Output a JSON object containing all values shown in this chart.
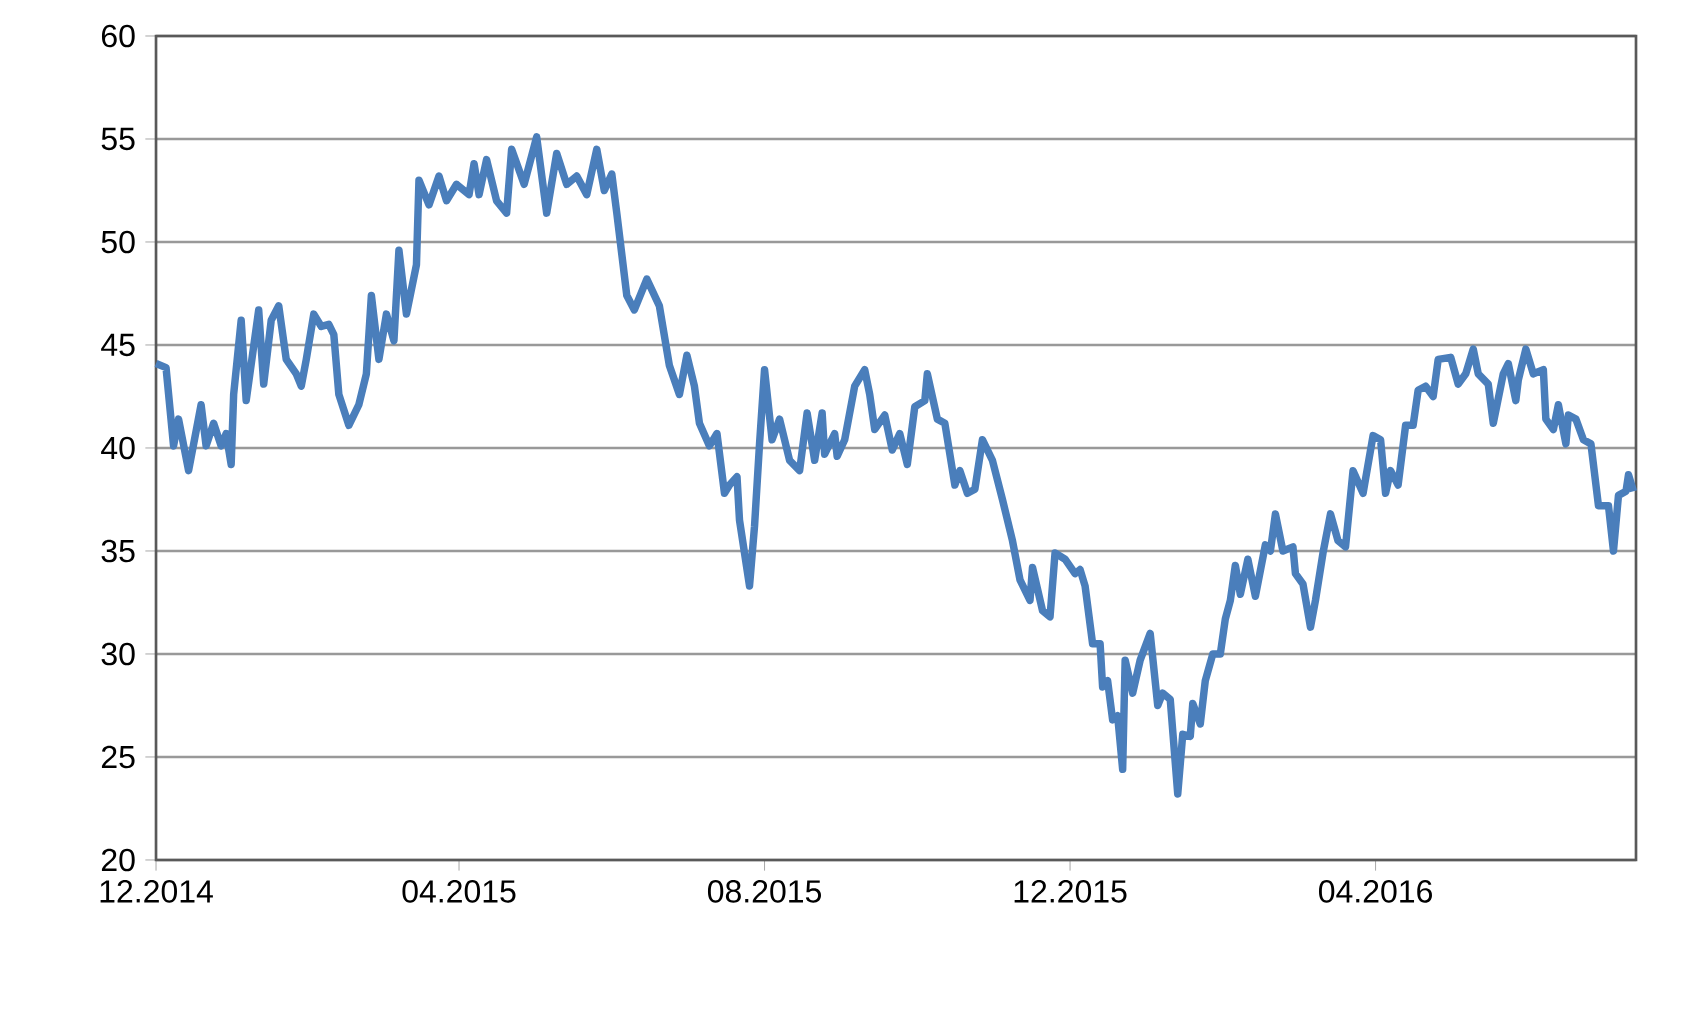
{
  "chart_data": {
    "type": "line",
    "color": "#4a7ebb",
    "grid": "y",
    "xlim": [
      "2014-12-01",
      "2016-07-14"
    ],
    "xticks": [
      {
        "value": "2014-12-01",
        "label": "12.2014"
      },
      {
        "value": "2015-04-01",
        "label": "04.2015"
      },
      {
        "value": "2015-08-01",
        "label": "08.2015"
      },
      {
        "value": "2015-12-01",
        "label": "12.2015"
      },
      {
        "value": "2016-04-01",
        "label": "04.2016"
      }
    ],
    "ylim": [
      20,
      60
    ],
    "yticks": [
      20,
      25,
      30,
      35,
      40,
      45,
      50,
      55,
      60
    ],
    "x": [
      "2014-12-01",
      "2014-12-05",
      "2014-12-08",
      "2014-12-10",
      "2014-12-14",
      "2014-12-19",
      "2014-12-21",
      "2014-12-24",
      "2014-12-27",
      "2014-12-29",
      "2014-12-31",
      "2015-01-01",
      "2015-01-04",
      "2015-01-06",
      "2015-01-11",
      "2015-01-13",
      "2015-01-16",
      "2015-01-19",
      "2015-01-22",
      "2015-01-26",
      "2015-01-28",
      "2015-01-30",
      "2015-02-02",
      "2015-02-05",
      "2015-02-08",
      "2015-02-10",
      "2015-02-12",
      "2015-02-16",
      "2015-02-20",
      "2015-02-23",
      "2015-02-25",
      "2015-02-28",
      "2015-03-03",
      "2015-03-06",
      "2015-03-08",
      "2015-03-11",
      "2015-03-15",
      "2015-03-16",
      "2015-03-20",
      "2015-03-24",
      "2015-03-27",
      "2015-03-31",
      "2015-04-05",
      "2015-04-07",
      "2015-04-09",
      "2015-04-12",
      "2015-04-16",
      "2015-04-20",
      "2015-04-22",
      "2015-04-27",
      "2015-05-02",
      "2015-05-06",
      "2015-05-10",
      "2015-05-14",
      "2015-05-18",
      "2015-05-22",
      "2015-05-26",
      "2015-05-29",
      "2015-06-01",
      "2015-06-03",
      "2015-06-07",
      "2015-06-10",
      "2015-06-15",
      "2015-06-20",
      "2015-06-24",
      "2015-06-28",
      "2015-07-01",
      "2015-07-04",
      "2015-07-06",
      "2015-07-10",
      "2015-07-13",
      "2015-07-16",
      "2015-07-18",
      "2015-07-21",
      "2015-07-22",
      "2015-07-26",
      "2015-07-28",
      "2015-07-30",
      "2015-08-01",
      "2015-08-04",
      "2015-08-07",
      "2015-08-11",
      "2015-08-15",
      "2015-08-18",
      "2015-08-21",
      "2015-08-24",
      "2015-08-25",
      "2015-08-29",
      "2015-08-30",
      "2015-09-02",
      "2015-09-06",
      "2015-09-10",
      "2015-09-12",
      "2015-09-14",
      "2015-09-18",
      "2015-09-21",
      "2015-09-24",
      "2015-09-27",
      "2015-09-30",
      "2015-10-04",
      "2015-10-05",
      "2015-10-09",
      "2015-10-12",
      "2015-10-16",
      "2015-10-18",
      "2015-10-21",
      "2015-10-24",
      "2015-10-27",
      "2015-10-31",
      "2015-11-04",
      "2015-11-08",
      "2015-11-11",
      "2015-11-15",
      "2015-11-16",
      "2015-11-20",
      "2015-11-23",
      "2015-11-25",
      "2015-11-29",
      "2015-12-03",
      "2015-12-05",
      "2015-12-07",
      "2015-12-10",
      "2015-12-13",
      "2015-12-14",
      "2015-12-16",
      "2015-12-18",
      "2015-12-20",
      "2015-12-22",
      "2015-12-23",
      "2015-12-26",
      "2015-12-29",
      "2016-01-02",
      "2016-01-05",
      "2016-01-07",
      "2016-01-10",
      "2016-01-13",
      "2016-01-15",
      "2016-01-18",
      "2016-01-19",
      "2016-01-22",
      "2016-01-24",
      "2016-01-27",
      "2016-01-30",
      "2016-02-01",
      "2016-02-03",
      "2016-02-05",
      "2016-02-07",
      "2016-02-10",
      "2016-02-13",
      "2016-02-17",
      "2016-02-19",
      "2016-02-21",
      "2016-02-24",
      "2016-02-28",
      "2016-02-29",
      "2016-03-03",
      "2016-03-06",
      "2016-03-08",
      "2016-03-11",
      "2016-03-14",
      "2016-03-17",
      "2016-03-20",
      "2016-03-23",
      "2016-03-27",
      "2016-03-31",
      "2016-04-03",
      "2016-04-05",
      "2016-04-07",
      "2016-04-10",
      "2016-04-13",
      "2016-04-16",
      "2016-04-18",
      "2016-04-21",
      "2016-04-24",
      "2016-04-26",
      "2016-05-01",
      "2016-05-04",
      "2016-05-07",
      "2016-05-10",
      "2016-05-12",
      "2016-05-16",
      "2016-05-18",
      "2016-05-22",
      "2016-05-24",
      "2016-05-27",
      "2016-05-28",
      "2016-05-31",
      "2016-06-03",
      "2016-06-07",
      "2016-06-08",
      "2016-06-11",
      "2016-06-13",
      "2016-06-16",
      "2016-06-17",
      "2016-06-20",
      "2016-06-23",
      "2016-06-26",
      "2016-06-29",
      "2016-07-03",
      "2016-07-05",
      "2016-07-07",
      "2016-07-10",
      "2016-07-11",
      "2016-07-13"
    ],
    "values": [
      44.1,
      43.9,
      40.1,
      41.4,
      38.9,
      42.1,
      40.1,
      41.2,
      40.1,
      40.7,
      39.2,
      42.6,
      46.2,
      42.3,
      46.7,
      43.1,
      46.2,
      46.9,
      44.3,
      43.6,
      43.0,
      44.3,
      46.5,
      45.9,
      46.0,
      45.5,
      42.6,
      41.1,
      42.1,
      43.6,
      47.4,
      44.3,
      46.5,
      45.2,
      49.6,
      46.5,
      48.9,
      53.0,
      51.8,
      53.2,
      52.0,
      52.8,
      52.3,
      53.8,
      52.3,
      54.0,
      52.0,
      51.4,
      54.5,
      52.8,
      55.1,
      51.4,
      54.3,
      52.8,
      53.2,
      52.3,
      54.5,
      52.5,
      53.3,
      51.4,
      47.4,
      46.7,
      48.2,
      46.9,
      44.0,
      42.6,
      44.5,
      43.0,
      41.2,
      40.1,
      40.7,
      37.8,
      38.2,
      38.6,
      36.5,
      33.3,
      36.2,
      40.2,
      43.8,
      40.4,
      41.4,
      39.4,
      38.9,
      41.7,
      39.4,
      41.7,
      39.7,
      40.7,
      39.6,
      40.4,
      43.0,
      43.8,
      42.6,
      40.9,
      41.6,
      39.9,
      40.7,
      39.2,
      42.0,
      42.3,
      43.6,
      41.4,
      41.2,
      38.2,
      38.9,
      37.8,
      38.0,
      40.4,
      39.4,
      37.5,
      35.5,
      33.6,
      32.6,
      34.2,
      32.1,
      31.8,
      34.9,
      34.6,
      33.9,
      34.1,
      33.3,
      30.5,
      30.5,
      28.4,
      28.7,
      26.8,
      27.0,
      24.4,
      29.7,
      28.1,
      29.7,
      31.0,
      27.5,
      28.1,
      27.8,
      23.2,
      26.1,
      26.0,
      27.6,
      26.6,
      28.7,
      30.0,
      30.0,
      31.7,
      32.6,
      34.3,
      32.9,
      34.6,
      32.8,
      35.3,
      35.0,
      36.8,
      35.0,
      35.2,
      33.9,
      33.4,
      31.3,
      32.6,
      34.9,
      36.8,
      35.5,
      35.2,
      38.9,
      37.8,
      40.6,
      40.4,
      37.8,
      38.9,
      38.2,
      41.1,
      41.1,
      42.8,
      43.0,
      42.5,
      44.3,
      44.4,
      43.1,
      43.6,
      44.8,
      43.6,
      43.1,
      41.2,
      43.6,
      44.1,
      42.3,
      43.3,
      44.8,
      43.6,
      43.8,
      41.4,
      40.9,
      42.1,
      40.2,
      41.6,
      41.4,
      40.4,
      40.2,
      37.2,
      37.2,
      35.0,
      37.7,
      37.9,
      38.7,
      37.9
    ]
  }
}
